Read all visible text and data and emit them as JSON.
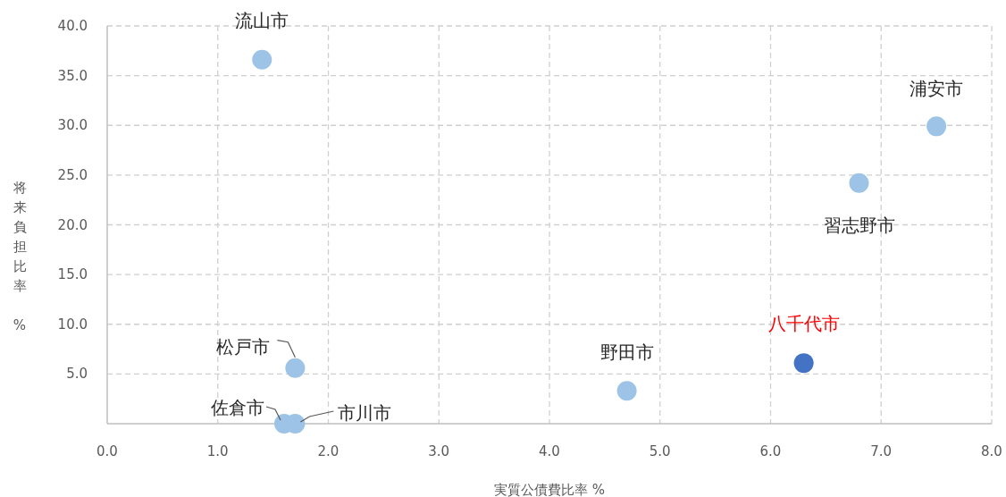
{
  "chart_data": {
    "type": "scatter",
    "xlabel": "実質公債費比率 %",
    "ylabel": "将来負担比率 %",
    "xlim": [
      0,
      8
    ],
    "ylim": [
      0,
      40
    ],
    "xticks": [
      {
        "value": 0,
        "label": "0.0"
      },
      {
        "value": 1,
        "label": "1.0"
      },
      {
        "value": 2,
        "label": "2.0"
      },
      {
        "value": 3,
        "label": "3.0"
      },
      {
        "value": 4,
        "label": "4.0"
      },
      {
        "value": 5,
        "label": "5.0"
      },
      {
        "value": 6,
        "label": "6.0"
      },
      {
        "value": 7,
        "label": "7.0"
      },
      {
        "value": 8,
        "label": "8.0"
      }
    ],
    "yticks": [
      {
        "value": 5,
        "label": "5.0"
      },
      {
        "value": 10,
        "label": "10.0"
      },
      {
        "value": 15,
        "label": "15.0"
      },
      {
        "value": 20,
        "label": "20.0"
      },
      {
        "value": 25,
        "label": "25.0"
      },
      {
        "value": 30,
        "label": "30.0"
      },
      {
        "value": 35,
        "label": "35.0"
      },
      {
        "value": 40,
        "label": "40.0"
      }
    ],
    "grid": true,
    "marker": "circle",
    "series": [
      {
        "color": "#9dc3e6",
        "x": [
          1.4,
          7.5,
          6.8,
          4.7,
          1.7,
          1.6,
          1.7
        ],
        "values": [
          36.6,
          29.9,
          24.2,
          3.3,
          5.6,
          0,
          0
        ]
      },
      {
        "name": "八千代市",
        "color": "#4472c4",
        "x": [
          6.3
        ],
        "values": [
          6.1
        ]
      }
    ],
    "annotations": [
      {
        "text": "流山市",
        "x": 1.4,
        "y": 36.6
      },
      {
        "text": "浦安市",
        "x": 7.5,
        "y": 29.9
      },
      {
        "text": "習志野市",
        "x": 6.8,
        "y": 24.2
      },
      {
        "text": "野田市",
        "x": 4.7,
        "y": 3.3
      },
      {
        "text": "松戸市",
        "x": 1.7,
        "y": 5.6
      },
      {
        "text": "佐倉市",
        "x": 1.6,
        "y": 0
      },
      {
        "text": "市川市",
        "x": 1.7,
        "y": 0
      }
    ]
  }
}
